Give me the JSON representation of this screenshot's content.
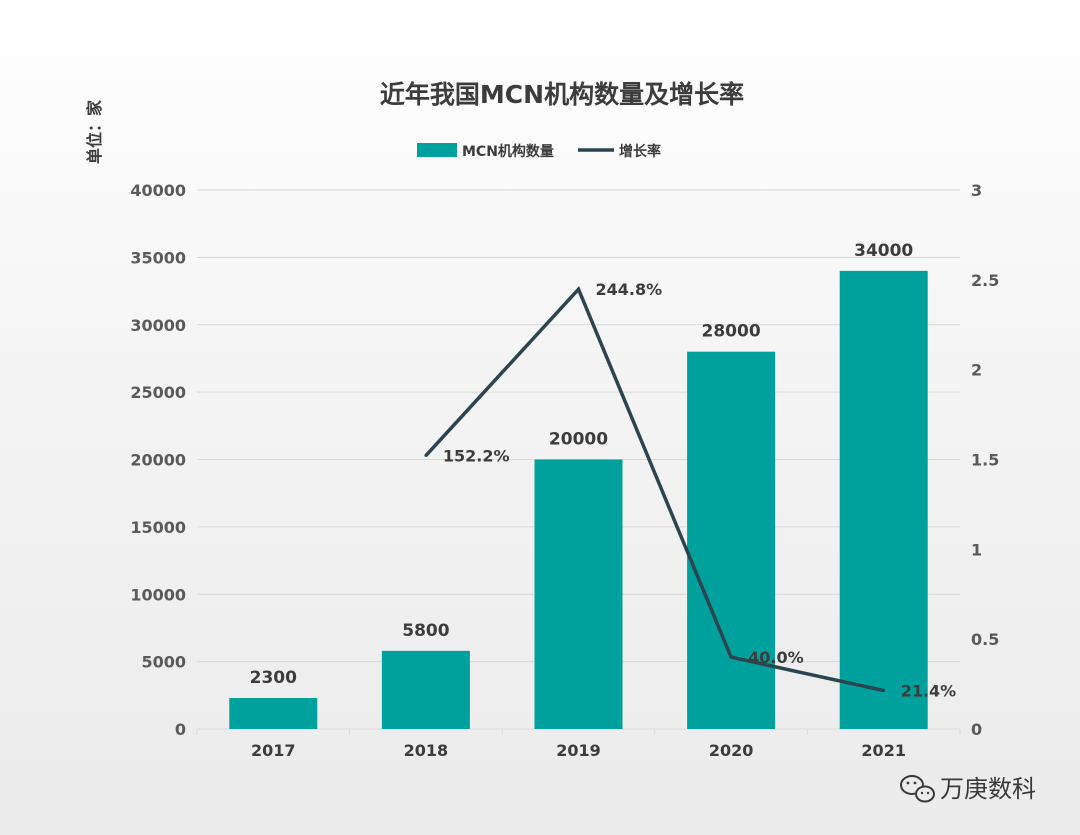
{
  "chart_data": {
    "type": "bar",
    "title": "近年我国MCN机构数量及增长率",
    "unit_label": "单位：家",
    "categories": [
      "2017",
      "2018",
      "2019",
      "2020",
      "2021"
    ],
    "series": [
      {
        "name": "MCN机构数量",
        "type": "bar",
        "axis": "left",
        "values": [
          2300,
          5800,
          20000,
          28000,
          34000
        ],
        "labels": [
          "2300",
          "5800",
          "20000",
          "28000",
          "34000"
        ],
        "color": "#00a19c"
      },
      {
        "name": "增长率",
        "type": "line",
        "axis": "right",
        "values": [
          null,
          1.522,
          2.448,
          0.4,
          0.214
        ],
        "labels": [
          "",
          "152.2%",
          "244.8%",
          "40.0%",
          "21.4%"
        ],
        "color": "#2b4450"
      }
    ],
    "y_left": {
      "min": 0,
      "max": 40000,
      "ticks": [
        "0",
        "5000",
        "10000",
        "15000",
        "20000",
        "25000",
        "30000",
        "35000",
        "40000"
      ]
    },
    "y_right": {
      "min": 0,
      "max": 3,
      "ticks": [
        "0",
        "0.5",
        "1",
        "1.5",
        "2",
        "2.5",
        "3"
      ]
    },
    "grid": true,
    "legend_position": "top-center"
  },
  "watermark": {
    "text": "万庚数科",
    "icon": "wechat-icon"
  }
}
